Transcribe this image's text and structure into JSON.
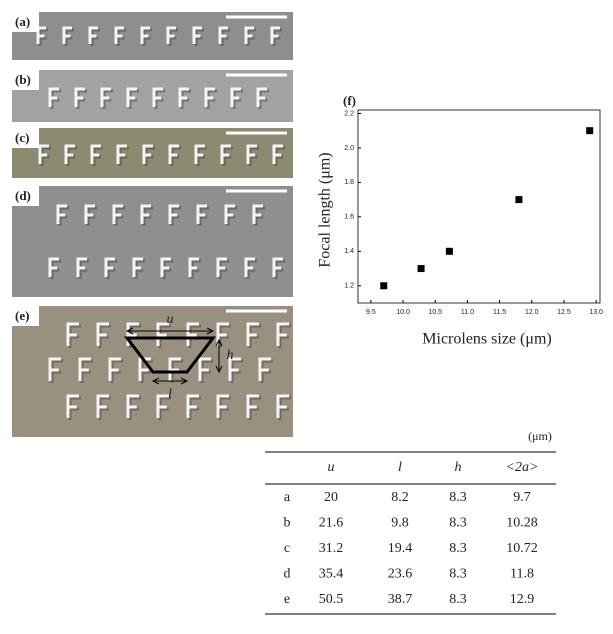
{
  "panels": [
    "(a)",
    "(b)",
    "(c)",
    "(d)",
    "(e)"
  ],
  "chart_data": {
    "type": "scatter",
    "panel_label": "(f)",
    "x_label": "Microlens size (μm)",
    "y_label": "Focal length (μm)",
    "x": [
      9.7,
      10.28,
      10.72,
      11.8,
      12.9
    ],
    "series": [
      {
        "color": "#000000",
        "values": [
          1.2,
          1.3,
          1.4,
          1.7,
          2.1
        ]
      }
    ],
    "xlim": [
      9.3,
      13.06
    ],
    "ylim": [
      1.1,
      2.22
    ],
    "xticks": [
      9.5,
      {
        "value": 10,
        "label": "10.0"
      },
      10.5,
      {
        "value": 11,
        "label": "11.0"
      },
      11.5,
      {
        "value": 12,
        "label": "12.0"
      },
      12.5,
      {
        "value": 13,
        "label": "13.0"
      }
    ],
    "yticks": [
      1.2,
      1.4,
      1.6,
      1.8,
      {
        "value": 2,
        "label": "2.0"
      },
      2.2
    ]
  },
  "table": {
    "unit": "(μm)",
    "header": [
      "u",
      "l",
      "h",
      "<2a>"
    ],
    "rows": [
      [
        "a",
        "20",
        "8.2",
        "8.3",
        "9.7"
      ],
      [
        "b",
        "21.6",
        "9.8",
        "8.3",
        "10.28"
      ],
      [
        "c",
        "31.2",
        "19.4",
        "8.3",
        "10.72"
      ],
      [
        "d",
        "35.4",
        "23.6",
        "8.3",
        "11.8"
      ],
      [
        "e",
        "50.5",
        "38.7",
        "8.3",
        "12.9"
      ]
    ]
  },
  "diagram": {
    "top": "u",
    "height": "h",
    "bottom": "l"
  }
}
